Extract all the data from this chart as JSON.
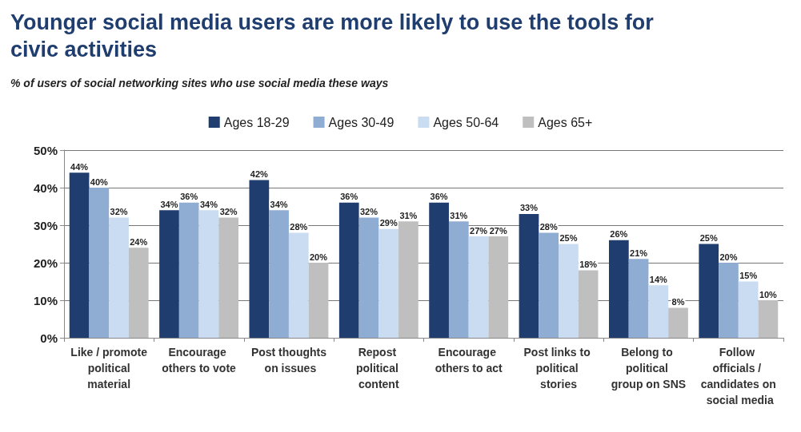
{
  "chart_data": {
    "type": "bar",
    "title": "Younger social media users are more likely to use the tools for civic activities",
    "subtitle": "% of users of social networking sites who use social media these ways",
    "categories": [
      "Like / promote political material",
      "Encourage others to vote",
      "Post thoughts on issues",
      "Repost political content",
      "Encourage others to act",
      "Post links to political stories",
      "Belong to political group on SNS",
      "Follow officials / candidates on social media"
    ],
    "series": [
      {
        "name": "Ages 18-29",
        "color": "#1f3d6e",
        "values": [
          44,
          34,
          42,
          36,
          36,
          33,
          26,
          25
        ],
        "value_labels": [
          "44%",
          "34%",
          "42%",
          "36%",
          "36%",
          "33%",
          "26%",
          "25%"
        ]
      },
      {
        "name": "Ages 30-49",
        "color": "#8fadd3",
        "values": [
          40,
          36,
          34,
          32,
          31,
          28,
          21,
          20
        ],
        "value_labels": [
          "40%",
          "36%",
          "34%",
          "32%",
          "31%",
          "28%",
          "21%",
          "20%"
        ]
      },
      {
        "name": "Ages 50-64",
        "color": "#c9dcf1",
        "values": [
          32,
          34,
          28,
          29,
          27,
          25,
          14,
          15
        ],
        "value_labels": [
          "32%",
          "34%",
          "28%",
          "29%",
          "27%",
          "25%",
          "14%",
          "15%"
        ]
      },
      {
        "name": "Ages 65+",
        "color": "#bfbfbf",
        "values": [
          24,
          32,
          20,
          31,
          27,
          18,
          8,
          10
        ],
        "value_labels": [
          "24%",
          "32%",
          "20%",
          "31%",
          "27%",
          "18%",
          "8%",
          "10%"
        ]
      }
    ],
    "ylim": [
      0,
      50
    ],
    "yticks": [
      {
        "value": 0,
        "label": "0%"
      },
      {
        "value": 10,
        "label": "10%"
      },
      {
        "value": 20,
        "label": "20%"
      },
      {
        "value": 30,
        "label": "30%"
      },
      {
        "value": 40,
        "label": "40%"
      },
      {
        "value": 50,
        "label": "50%"
      }
    ],
    "grid": "y",
    "legend": "top"
  }
}
